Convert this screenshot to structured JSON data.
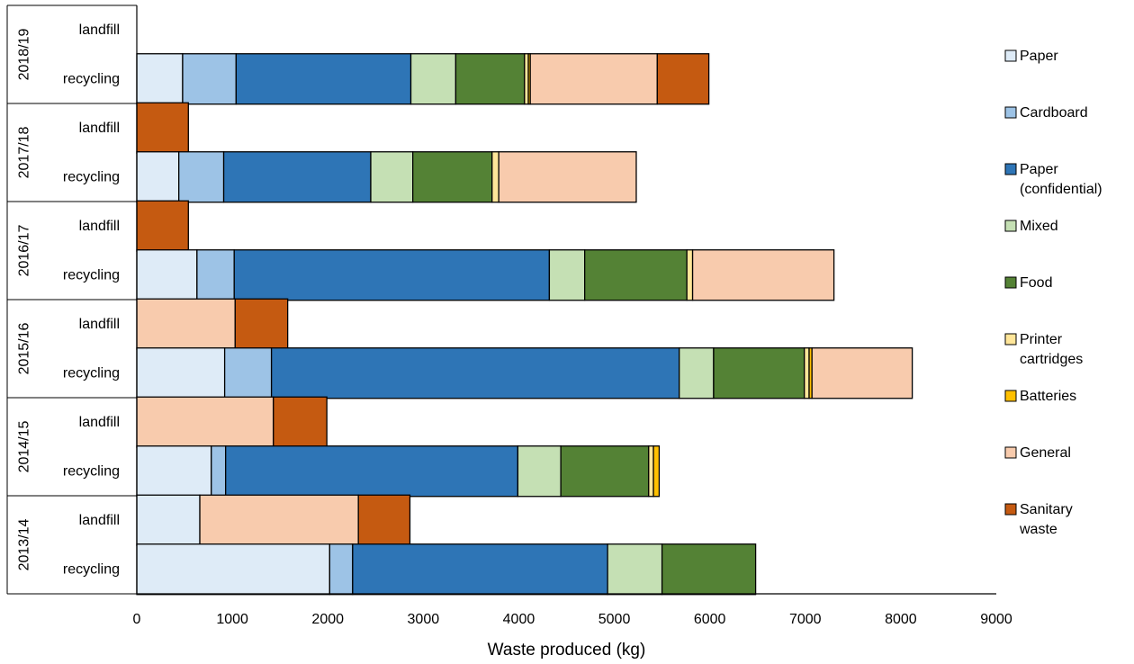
{
  "chart_data": {
    "type": "bar",
    "orientation": "horizontal",
    "stacked": true,
    "xlabel": "Waste produced (kg)",
    "xlim": [
      0,
      9000
    ],
    "xticks": [
      0,
      1000,
      2000,
      3000,
      4000,
      5000,
      6000,
      7000,
      8000,
      9000
    ],
    "grid": false,
    "legend_position": "right",
    "series": [
      {
        "name": "Paper",
        "color": "#DEEBF7"
      },
      {
        "name": "Cardboard",
        "color": "#9DC3E6"
      },
      {
        "name": "Paper (confidential)",
        "legend_lines": [
          "Paper",
          "(confidential)"
        ],
        "color": "#2E75B6"
      },
      {
        "name": "Mixed",
        "color": "#C5E0B4"
      },
      {
        "name": "Food",
        "color": "#548235"
      },
      {
        "name": "Printer cartridges",
        "legend_lines": [
          "Printer",
          "cartridges"
        ],
        "color": "#FFE699"
      },
      {
        "name": "Batteries",
        "color": "#FFC000"
      },
      {
        "name": "General",
        "color": "#F8CBAD"
      },
      {
        "name": "Sanitary waste",
        "legend_lines": [
          "Sanitary",
          "waste"
        ],
        "color": "#C55A11"
      }
    ],
    "groups": [
      {
        "year": "2018/19",
        "bars": [
          {
            "label": "landfill",
            "values": [
              0,
              0,
              0,
              0,
              0,
              0,
              0,
              0,
              0
            ]
          },
          {
            "label": "recycling",
            "values": [
              480,
              560,
              1830,
              470,
              720,
              40,
              20,
              1330,
              540
            ]
          }
        ]
      },
      {
        "year": "2017/18",
        "bars": [
          {
            "label": "landfill",
            "values": [
              0,
              0,
              0,
              0,
              0,
              0,
              0,
              0,
              540
            ]
          },
          {
            "label": "recycling",
            "values": [
              440,
              470,
              1540,
              440,
              830,
              70,
              0,
              1440,
              0
            ]
          }
        ]
      },
      {
        "year": "2016/17",
        "bars": [
          {
            "label": "landfill",
            "values": [
              0,
              0,
              0,
              0,
              0,
              0,
              0,
              0,
              540
            ]
          },
          {
            "label": "recycling",
            "values": [
              630,
              390,
              3300,
              370,
              1070,
              60,
              0,
              1480,
              0
            ]
          }
        ]
      },
      {
        "year": "2015/16",
        "bars": [
          {
            "label": "landfill",
            "values": [
              0,
              0,
              0,
              0,
              0,
              0,
              0,
              1030,
              550
            ]
          },
          {
            "label": "recycling",
            "values": [
              920,
              490,
              4270,
              360,
              950,
              50,
              30,
              1050,
              0
            ]
          }
        ]
      },
      {
        "year": "2014/15",
        "bars": [
          {
            "label": "landfill",
            "values": [
              0,
              0,
              0,
              0,
              0,
              0,
              0,
              1430,
              560
            ]
          },
          {
            "label": "recycling",
            "values": [
              780,
              150,
              3060,
              450,
              920,
              50,
              60,
              0,
              0
            ]
          }
        ]
      },
      {
        "year": "2013/14",
        "bars": [
          {
            "label": "landfill",
            "values": [
              660,
              0,
              0,
              0,
              0,
              0,
              0,
              1660,
              540
            ]
          },
          {
            "label": "recycling",
            "values": [
              2020,
              240,
              2670,
              570,
              980,
              0,
              0,
              0,
              0
            ]
          }
        ]
      }
    ]
  }
}
